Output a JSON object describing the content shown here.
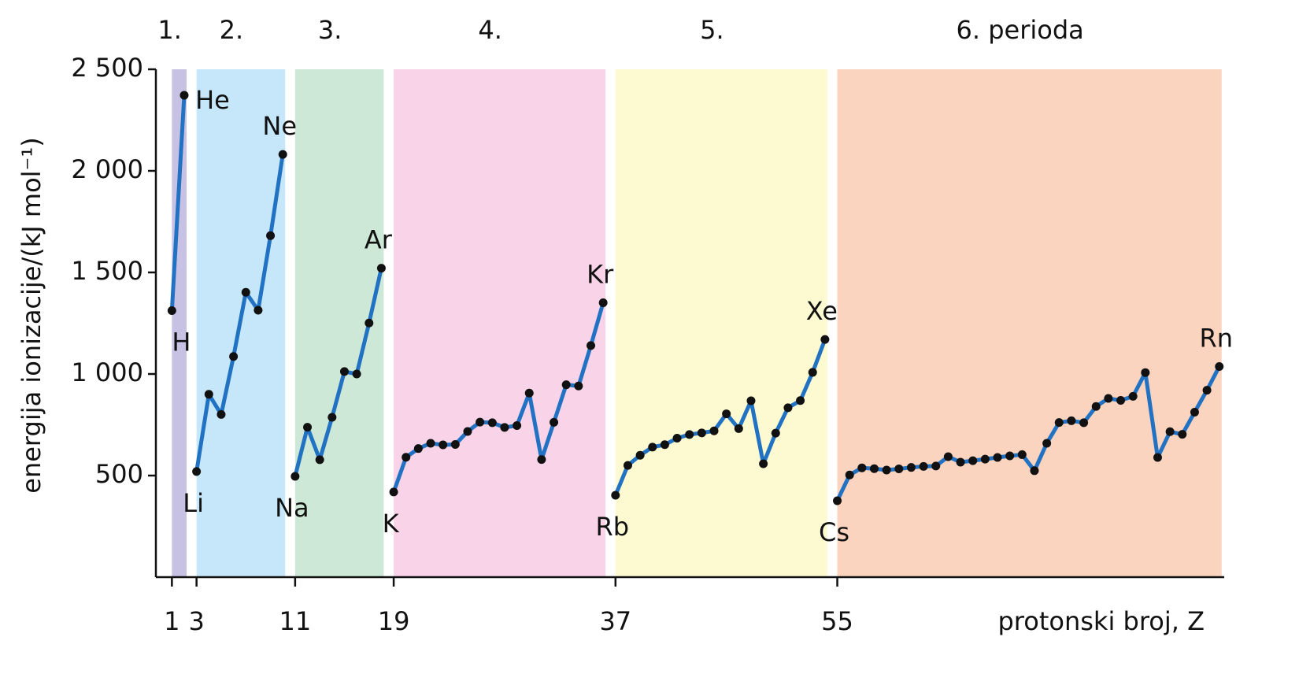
{
  "chart_data": {
    "type": "line",
    "xlabel": "protonski broj, Z",
    "ylabel": "energija ionizacije/(kJ mol⁻¹)",
    "line_color": "#2272c3",
    "marker_color": "#111111",
    "xlim": [
      -0.3,
      86.4
    ],
    "ylim": [
      0,
      2500
    ],
    "xticks": [
      1,
      3,
      11,
      19,
      37,
      55
    ],
    "yticks": [
      500,
      {
        "value": 1000,
        "label": "1 000"
      },
      {
        "value": 1500,
        "label": "1 500"
      },
      {
        "value": 2000,
        "label": "2 000"
      },
      {
        "value": 2500,
        "label": "2 500"
      }
    ],
    "periods": [
      {
        "label": "1.",
        "color": "#c7c1e3",
        "x": [
          1,
          2
        ],
        "values": [
          1312,
          2372
        ]
      },
      {
        "label": "2.",
        "color": "#c6e7f9",
        "x": [
          3,
          4,
          5,
          6,
          7,
          8,
          9,
          10
        ],
        "values": [
          520,
          900,
          801,
          1086,
          1402,
          1314,
          1681,
          2081
        ]
      },
      {
        "label": "3.",
        "color": "#cde8d7",
        "x": [
          11,
          12,
          13,
          14,
          15,
          16,
          17,
          18
        ],
        "values": [
          496,
          738,
          578,
          787,
          1012,
          1000,
          1251,
          1521
        ]
      },
      {
        "label": "4.",
        "color": "#f9d3e7",
        "x": [
          19,
          20,
          21,
          22,
          23,
          24,
          25,
          26,
          27,
          28,
          29,
          30,
          31,
          32,
          33,
          34,
          35,
          36
        ],
        "values": [
          419,
          590,
          633,
          659,
          651,
          653,
          717,
          763,
          760,
          737,
          746,
          906,
          579,
          762,
          947,
          941,
          1140,
          1351
        ]
      },
      {
        "label": "5.",
        "color": "#fdfad1",
        "x": [
          37,
          38,
          39,
          40,
          41,
          42,
          43,
          44,
          45,
          46,
          47,
          48,
          49,
          50,
          51,
          52,
          53,
          54
        ],
        "values": [
          403,
          550,
          600,
          640,
          652,
          684,
          702,
          710,
          720,
          804,
          731,
          868,
          558,
          709,
          834,
          869,
          1008,
          1170
        ]
      },
      {
        "label": "6. perioda",
        "color": "#fad4bf",
        "x": [
          55,
          56,
          57,
          58,
          59,
          60,
          61,
          62,
          63,
          64,
          65,
          66,
          67,
          68,
          69,
          70,
          71,
          72,
          73,
          74,
          75,
          76,
          77,
          78,
          79,
          80,
          81,
          82,
          83,
          84,
          85,
          86
        ],
        "values": [
          376,
          503,
          538,
          534,
          527,
          533,
          540,
          545,
          547,
          593,
          566,
          573,
          581,
          589,
          597,
          603,
          524,
          659,
          761,
          770,
          760,
          840,
          880,
          870,
          890,
          1007,
          589,
          716,
          703,
          812,
          920,
          1037
        ]
      }
    ],
    "element_labels": [
      {
        "text": "H",
        "x": 1
      },
      {
        "text": "He",
        "x": 2
      },
      {
        "text": "Li",
        "x": 3
      },
      {
        "text": "Ne",
        "x": 10
      },
      {
        "text": "Na",
        "x": 11
      },
      {
        "text": "Ar",
        "x": 18
      },
      {
        "text": "K",
        "x": 19
      },
      {
        "text": "Kr",
        "x": 36
      },
      {
        "text": "Rb",
        "x": 37
      },
      {
        "text": "Xe",
        "x": 54
      },
      {
        "text": "Cs",
        "x": 55
      },
      {
        "text": "Rn",
        "x": 86
      }
    ]
  }
}
